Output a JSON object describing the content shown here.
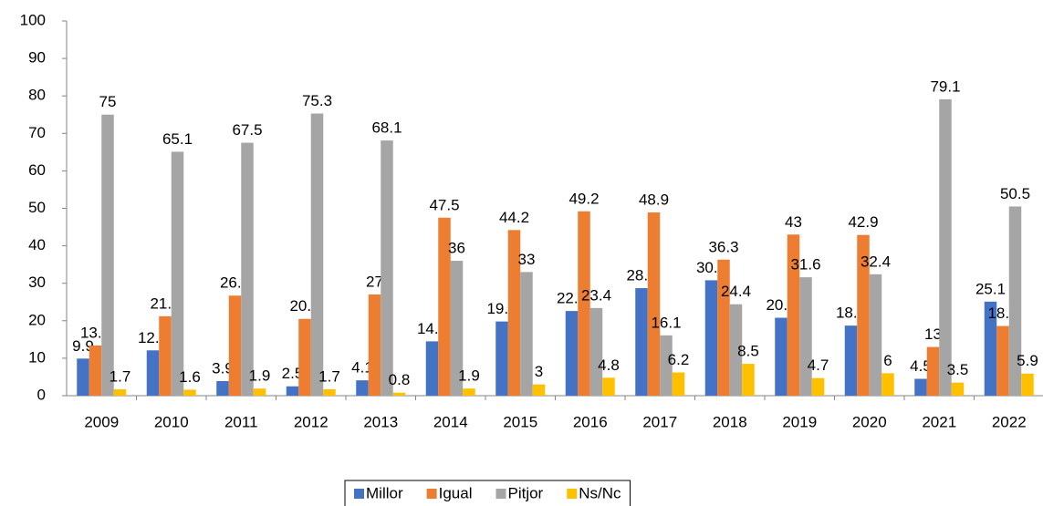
{
  "chart_data": {
    "type": "bar",
    "categories": [
      "2009",
      "2010",
      "2011",
      "2012",
      "2013",
      "2014",
      "2015",
      "2016",
      "2017",
      "2018",
      "2019",
      "2020",
      "2021",
      "2022"
    ],
    "series": [
      {
        "name": "Millor",
        "color": "#4472c4",
        "values": [
          9.9,
          12.1,
          3.9,
          2.5,
          4.1,
          14.5,
          19.8,
          22.6,
          28.7,
          30.8,
          20.8,
          18.7,
          4.5,
          25.1
        ]
      },
      {
        "name": "Igual",
        "color": "#ed7d31",
        "values": [
          13.4,
          21.2,
          26.7,
          20.5,
          27,
          47.5,
          44.2,
          49.2,
          48.9,
          36.3,
          43,
          42.9,
          13,
          18.6
        ]
      },
      {
        "name": "Pitjor",
        "color": "#a5a5a5",
        "values": [
          75,
          65.1,
          67.5,
          75.3,
          68.1,
          36,
          33,
          23.4,
          16.1,
          24.4,
          31.6,
          32.4,
          79.1,
          50.5
        ]
      },
      {
        "name": "Ns/Nc",
        "color": "#ffc000",
        "values": [
          1.7,
          1.6,
          1.9,
          1.7,
          0.8,
          1.9,
          3,
          4.8,
          6.2,
          8.5,
          4.7,
          6,
          3.5,
          5.9
        ]
      }
    ],
    "ylim": [
      0,
      100
    ],
    "yticks": [
      0,
      10,
      20,
      30,
      40,
      50,
      60,
      70,
      80,
      90,
      100
    ],
    "legend": "bottom"
  }
}
